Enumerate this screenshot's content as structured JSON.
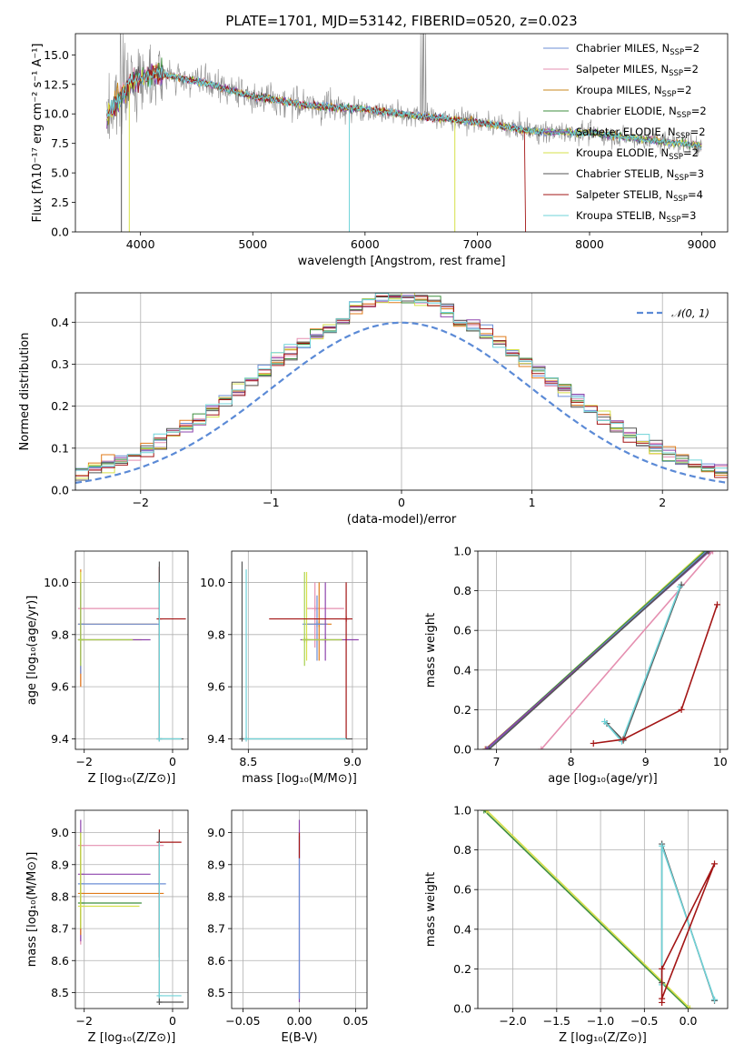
{
  "figure": {
    "title": "PLATE=1701, MJD=53142, FIBERID=0520, z=0.023"
  },
  "chart_data": [
    {
      "id": "spectrum",
      "type": "line",
      "xlabel": "wavelength [Angstrom, rest frame]",
      "ylabel": "Flux [fλ10⁻¹⁷ erg cm⁻² s⁻¹ A⁻¹]",
      "xlim": [
        3420,
        9230
      ],
      "ylim": [
        0,
        16.8
      ],
      "xticks": [
        4000,
        5000,
        6000,
        7000,
        8000,
        9000
      ],
      "yticks": [
        0.0,
        2.5,
        5.0,
        7.5,
        10.0,
        12.5,
        15.0
      ],
      "legend_position": "top-right",
      "grid": false,
      "data_range": [
        3700,
        9000
      ],
      "data_shape": {
        "wavelength": [
          3700,
          3900,
          4100,
          4500,
          5000,
          5500,
          6000,
          6500,
          7000,
          7500,
          8000,
          8500,
          9000
        ],
        "flux": [
          9.8,
          12.5,
          13.5,
          12.8,
          11.5,
          10.7,
          10.4,
          9.8,
          9.3,
          8.5,
          8.4,
          7.8,
          7.3
        ]
      },
      "series": [
        {
          "name": "Chabrier MILES, N",
          "sub": "SSP",
          "suffix": "=2",
          "color": "#6b8ed6"
        },
        {
          "name": "Salpeter MILES, N",
          "sub": "SSP",
          "suffix": "=2",
          "color": "#e58fb0"
        },
        {
          "name": "Kroupa MILES, N",
          "sub": "SSP",
          "suffix": "=2",
          "color": "#c8871c"
        },
        {
          "name": "Chabrier ELODIE, N",
          "sub": "SSP",
          "suffix": "=2",
          "color": "#3f8f3f"
        },
        {
          "name": "Salpeter ELODIE, N",
          "sub": "SSP",
          "suffix": "=2",
          "color": "#8e44ad"
        },
        {
          "name": "Kroupa ELODIE, N",
          "sub": "SSP",
          "suffix": "=2",
          "color": "#d6e04a"
        },
        {
          "name": "Chabrier STELIB, N",
          "sub": "SSP",
          "suffix": "=3",
          "color": "#555555"
        },
        {
          "name": "Salpeter STELIB, N",
          "sub": "SSP",
          "suffix": "=4",
          "color": "#a31515"
        },
        {
          "name": "Kroupa STELIB, N",
          "sub": "SSP",
          "suffix": "=3",
          "color": "#6fd3d8"
        }
      ]
    },
    {
      "id": "residuals",
      "type": "line",
      "xlabel": "(data-model)/error",
      "ylabel": "Normed distribution",
      "xlim": [
        -2.5,
        2.5
      ],
      "ylim": [
        0,
        0.47
      ],
      "xticks": [
        -2,
        -1,
        0,
        1,
        2
      ],
      "yticks": [
        0.0,
        0.1,
        0.2,
        0.3,
        0.4
      ],
      "grid": true,
      "legend_position": "top-right",
      "legend": "𝒩(0, 1)",
      "normal_curve_color": "#5b8ad6",
      "bin_width": 0.1,
      "hist_colors": [
        "#6b8ed6",
        "#e58fb0",
        "#e07b1a",
        "#3f8f3f",
        "#8e44ad",
        "#d6e04a",
        "#555555",
        "#a31515",
        "#6fd3d8"
      ]
    },
    {
      "id": "age_vs_Z",
      "type": "scatter",
      "xlabel": "Z [log₁₀(Z/Z⊙)]",
      "ylabel": "age  [log₁₀(age/yr)]",
      "xlim": [
        -2.2,
        0.35
      ],
      "ylim": [
        9.36,
        10.12
      ],
      "xticks": [
        -2,
        0
      ],
      "yticks": [
        9.4,
        9.6,
        9.8,
        10.0
      ],
      "grid": true,
      "points": [
        {
          "x": -2.08,
          "y": 9.9,
          "xlo": -2.08,
          "xhi": -0.3,
          "ylo": 9.6,
          "yhi": 10.0,
          "color": "#e58fb0"
        },
        {
          "x": -2.08,
          "y": 9.84,
          "xlo": -2.08,
          "xhi": -0.35,
          "ylo": 9.6,
          "yhi": 10.05,
          "color": "#e07b1a"
        },
        {
          "x": -2.08,
          "y": 9.84,
          "xlo": -2.08,
          "xhi": -0.3,
          "ylo": 9.65,
          "yhi": 9.95,
          "color": "#6b8ed6"
        },
        {
          "x": -2.08,
          "y": 9.78,
          "xlo": -2.08,
          "xhi": -0.7,
          "ylo": 9.7,
          "yhi": 10.04,
          "color": "#d6e04a"
        },
        {
          "x": -2.08,
          "y": 9.78,
          "xlo": -2.08,
          "xhi": -0.5,
          "ylo": 9.7,
          "yhi": 10.0,
          "color": "#8e44ad"
        },
        {
          "x": -2.08,
          "y": 9.78,
          "xlo": -2.08,
          "xhi": -0.9,
          "ylo": 9.68,
          "yhi": 10.0,
          "color": "#a8d050"
        },
        {
          "x": -0.3,
          "y": 9.86,
          "xlo": -0.3,
          "xhi": 0.3,
          "ylo": 9.4,
          "yhi": 10.06,
          "color": "#a31515"
        },
        {
          "x": -0.3,
          "y": 9.4,
          "xlo": -0.3,
          "xhi": 0.25,
          "ylo": 9.4,
          "yhi": 10.08,
          "color": "#555555"
        },
        {
          "x": -0.3,
          "y": 9.4,
          "xlo": -0.3,
          "xhi": 0.2,
          "ylo": 9.4,
          "yhi": 10.0,
          "color": "#6fd3d8"
        }
      ]
    },
    {
      "id": "age_vs_mass",
      "type": "scatter",
      "xlabel": "mass [log₁₀(M/M⊙)]",
      "ylabel": "",
      "xlim": [
        8.42,
        9.07
      ],
      "ylim": [
        9.36,
        10.12
      ],
      "xticks": [
        8.5,
        9.0
      ],
      "yticks": [
        9.4,
        9.6,
        9.8,
        10.0
      ],
      "grid": true,
      "points": [
        {
          "x": 8.82,
          "y": 9.9,
          "xlo": 8.78,
          "xhi": 8.96,
          "ylo": 9.75,
          "yhi": 10.0,
          "color": "#e58fb0"
        },
        {
          "x": 8.84,
          "y": 9.84,
          "xlo": 8.78,
          "xhi": 8.9,
          "ylo": 9.7,
          "yhi": 10.0,
          "color": "#e07b1a"
        },
        {
          "x": 8.83,
          "y": 9.84,
          "xlo": 8.76,
          "xhi": 8.88,
          "ylo": 9.7,
          "yhi": 9.95,
          "color": "#6b8ed6"
        },
        {
          "x": 8.78,
          "y": 9.78,
          "xlo": 8.78,
          "xhi": 8.95,
          "ylo": 9.7,
          "yhi": 10.04,
          "color": "#d6e04a"
        },
        {
          "x": 8.87,
          "y": 9.78,
          "xlo": 8.75,
          "xhi": 9.03,
          "ylo": 9.7,
          "yhi": 10.0,
          "color": "#8e44ad"
        },
        {
          "x": 8.77,
          "y": 9.78,
          "xlo": 8.77,
          "xhi": 8.95,
          "ylo": 9.68,
          "yhi": 10.04,
          "color": "#a8d050"
        },
        {
          "x": 8.97,
          "y": 9.86,
          "xlo": 8.6,
          "xhi": 9.0,
          "ylo": 9.4,
          "yhi": 10.0,
          "color": "#a31515"
        },
        {
          "x": 8.47,
          "y": 9.4,
          "xlo": 8.47,
          "xhi": 9.0,
          "ylo": 9.4,
          "yhi": 10.08,
          "color": "#555555"
        },
        {
          "x": 8.49,
          "y": 9.4,
          "xlo": 8.49,
          "xhi": 8.97,
          "ylo": 9.4,
          "yhi": 10.05,
          "color": "#6fd3d8"
        }
      ]
    },
    {
      "id": "weight_vs_age",
      "type": "line",
      "xlabel": "age  [log₁₀(age/yr)]",
      "ylabel": "mass weight",
      "xlim": [
        6.75,
        10.1
      ],
      "ylim": [
        0,
        1
      ],
      "xticks": [
        7,
        8,
        9,
        10
      ],
      "yticks": [
        0.0,
        0.2,
        0.4,
        0.6,
        0.8,
        1.0
      ],
      "grid": true,
      "series": [
        {
          "color": "#e07b1a",
          "x": [
            6.85,
            9.85
          ],
          "y": [
            0.0,
            1.0
          ]
        },
        {
          "color": "#d6e04a",
          "x": [
            6.87,
            9.78
          ],
          "y": [
            0.0,
            1.0
          ]
        },
        {
          "color": "#3f8f3f",
          "x": [
            6.86,
            9.8
          ],
          "y": [
            0.0,
            1.0
          ]
        },
        {
          "color": "#6b8ed6",
          "x": [
            6.88,
            9.82
          ],
          "y": [
            0.0,
            1.0
          ]
        },
        {
          "color": "#8e44ad",
          "x": [
            6.86,
            9.86
          ],
          "y": [
            0.0,
            1.0
          ]
        },
        {
          "color": "#555555",
          "x": [
            6.9,
            9.84
          ],
          "y": [
            0.0,
            1.0
          ]
        },
        {
          "color": "#e58fb0",
          "x": [
            7.6,
            9.9
          ],
          "y": [
            0.0,
            1.0
          ]
        },
        {
          "color": "#555555",
          "x": [
            8.48,
            8.7,
            9.48
          ],
          "y": [
            0.13,
            0.045,
            0.83
          ]
        },
        {
          "color": "#6fd3d8",
          "x": [
            8.45,
            8.68,
            9.46
          ],
          "y": [
            0.14,
            0.04,
            0.82
          ]
        },
        {
          "color": "#a31515",
          "x": [
            8.3,
            8.7,
            9.48,
            9.96
          ],
          "y": [
            0.03,
            0.05,
            0.2,
            0.73
          ]
        }
      ]
    },
    {
      "id": "mass_vs_Z",
      "type": "scatter",
      "xlabel": "Z [log₁₀(Z/Z⊙)]",
      "ylabel": "mass [log₁₀(M/M⊙)]",
      "xlim": [
        -2.2,
        0.35
      ],
      "ylim": [
        8.45,
        9.07
      ],
      "xticks": [
        -2,
        0
      ],
      "yticks": [
        8.5,
        8.6,
        8.7,
        8.8,
        8.9,
        9.0
      ],
      "grid": true,
      "points": [
        {
          "x": -2.08,
          "y": 8.96,
          "xlo": -2.08,
          "xhi": -0.2,
          "ylo": 8.65,
          "yhi": 9.0,
          "color": "#e58fb0"
        },
        {
          "x": -2.08,
          "y": 8.87,
          "xlo": -2.08,
          "xhi": -0.5,
          "ylo": 8.66,
          "yhi": 9.04,
          "color": "#8e44ad"
        },
        {
          "x": -2.08,
          "y": 8.84,
          "xlo": -2.08,
          "xhi": -0.15,
          "ylo": 8.7,
          "yhi": 8.95,
          "color": "#6b8ed6"
        },
        {
          "x": -2.08,
          "y": 8.81,
          "xlo": -2.08,
          "xhi": -0.2,
          "ylo": 8.68,
          "yhi": 8.97,
          "color": "#e07b1a"
        },
        {
          "x": -2.08,
          "y": 8.78,
          "xlo": -2.08,
          "xhi": -0.7,
          "ylo": 8.7,
          "yhi": 9.0,
          "color": "#3f8f3f"
        },
        {
          "x": -2.08,
          "y": 8.77,
          "xlo": -2.08,
          "xhi": -0.75,
          "ylo": 8.7,
          "yhi": 9.0,
          "color": "#d6e04a"
        },
        {
          "x": -0.3,
          "y": 8.97,
          "xlo": -0.3,
          "xhi": 0.2,
          "ylo": 8.61,
          "yhi": 9.01,
          "color": "#a31515"
        },
        {
          "x": -0.3,
          "y": 8.47,
          "xlo": -0.3,
          "xhi": 0.25,
          "ylo": 8.47,
          "yhi": 9.0,
          "color": "#555555"
        },
        {
          "x": -0.3,
          "y": 8.49,
          "xlo": -0.3,
          "xhi": 0.2,
          "ylo": 8.49,
          "yhi": 8.97,
          "color": "#6fd3d8"
        }
      ]
    },
    {
      "id": "mass_vs_EBV",
      "type": "scatter",
      "xlabel": "E(B-V)",
      "ylabel": "",
      "xlim": [
        -0.06,
        0.06
      ],
      "ylim": [
        8.45,
        9.07
      ],
      "xticks": [
        -0.05,
        0.0,
        0.05
      ],
      "xtick_labels": [
        "−0.05",
        "0.00",
        "0.05"
      ],
      "yticks": [
        8.5,
        8.6,
        8.7,
        8.8,
        8.9,
        9.0
      ],
      "grid": true,
      "points": [
        {
          "x": 0.0,
          "ylo": 8.47,
          "yhi": 9.04,
          "color": "#8e44ad"
        },
        {
          "x": 0.0,
          "ylo": 8.48,
          "yhi": 8.99,
          "color": "#6b8ed6"
        },
        {
          "x": 0.0,
          "ylo": 8.92,
          "yhi": 9.0,
          "color": "#a31515"
        }
      ]
    },
    {
      "id": "weight_vs_Z",
      "type": "line",
      "xlabel": "Z [log₁₀(Z/Z⊙)]",
      "ylabel": "mass weight",
      "xlim": [
        -2.4,
        0.45
      ],
      "ylim": [
        0,
        1
      ],
      "xticks": [
        -2.0,
        -1.5,
        -1.0,
        -0.5,
        0.0
      ],
      "xtick_labels": [
        "−2.0",
        "−1.5",
        "−1.0",
        "−0.5",
        "0.0"
      ],
      "yticks": [
        0.0,
        0.2,
        0.4,
        0.6,
        0.8,
        1.0
      ],
      "grid": true,
      "series": [
        {
          "color": "#3f8f3f",
          "x": [
            -2.33,
            0.0
          ],
          "y": [
            1.0,
            0.0
          ]
        },
        {
          "color": "#d6e04a",
          "x": [
            -2.3,
            0.02
          ],
          "y": [
            1.0,
            0.0
          ]
        },
        {
          "color": "#555555",
          "x": [
            -0.3,
            -0.3,
            0.3
          ],
          "y": [
            0.13,
            0.83,
            0.04
          ]
        },
        {
          "color": "#6fd3d8",
          "x": [
            -0.3,
            -0.3,
            0.3
          ],
          "y": [
            0.12,
            0.82,
            0.045
          ]
        },
        {
          "color": "#a31515",
          "x": [
            -0.3,
            -0.3,
            0.3,
            -0.3
          ],
          "y": [
            0.03,
            0.2,
            0.73,
            0.05
          ]
        }
      ]
    }
  ]
}
